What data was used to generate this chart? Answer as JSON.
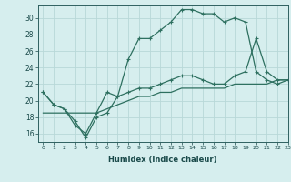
{
  "xlabel": "Humidex (Indice chaleur)",
  "background_color": "#d6eeee",
  "grid_color": "#b8d8d8",
  "line_color": "#2e7060",
  "xlim": [
    -0.5,
    23
  ],
  "ylim": [
    15,
    31.5
  ],
  "xticks": [
    0,
    1,
    2,
    3,
    4,
    5,
    6,
    7,
    8,
    9,
    10,
    11,
    12,
    13,
    14,
    15,
    16,
    17,
    18,
    19,
    20,
    21,
    22,
    23
  ],
  "yticks": [
    16,
    18,
    20,
    22,
    24,
    26,
    28,
    30
  ],
  "line1_x": [
    0,
    1,
    2,
    3,
    4,
    5,
    6,
    7,
    8,
    9,
    10,
    11,
    12,
    13,
    14,
    15,
    16,
    17,
    18,
    19,
    20,
    21,
    22,
    23
  ],
  "line1_y": [
    21,
    19.5,
    19,
    17,
    16,
    18.5,
    21,
    20.5,
    25,
    27.5,
    27.5,
    28.5,
    29.5,
    31,
    31,
    30.5,
    30.5,
    29.5,
    30,
    29.5,
    23.5,
    22.5,
    22,
    22.5
  ],
  "line2_x": [
    0,
    1,
    2,
    3,
    4,
    5,
    6,
    7,
    8,
    9,
    10,
    11,
    12,
    13,
    14,
    15,
    16,
    17,
    18,
    19,
    20,
    21,
    22,
    23
  ],
  "line2_y": [
    21,
    19.5,
    19,
    17.5,
    15.5,
    18,
    18.5,
    20.5,
    21,
    21.5,
    21.5,
    22,
    22.5,
    23,
    23,
    22.5,
    22,
    22,
    23,
    23.5,
    27.5,
    23.5,
    22.5,
    22.5
  ],
  "line3_x": [
    0,
    1,
    2,
    3,
    4,
    5,
    6,
    7,
    8,
    9,
    10,
    11,
    12,
    13,
    14,
    15,
    16,
    17,
    18,
    19,
    20,
    21,
    22,
    23
  ],
  "line3_y": [
    18.5,
    18.5,
    18.5,
    18.5,
    18.5,
    18.5,
    19,
    19.5,
    20,
    20.5,
    20.5,
    21,
    21,
    21.5,
    21.5,
    21.5,
    21.5,
    21.5,
    22,
    22,
    22,
    22,
    22.5,
    22.5
  ]
}
